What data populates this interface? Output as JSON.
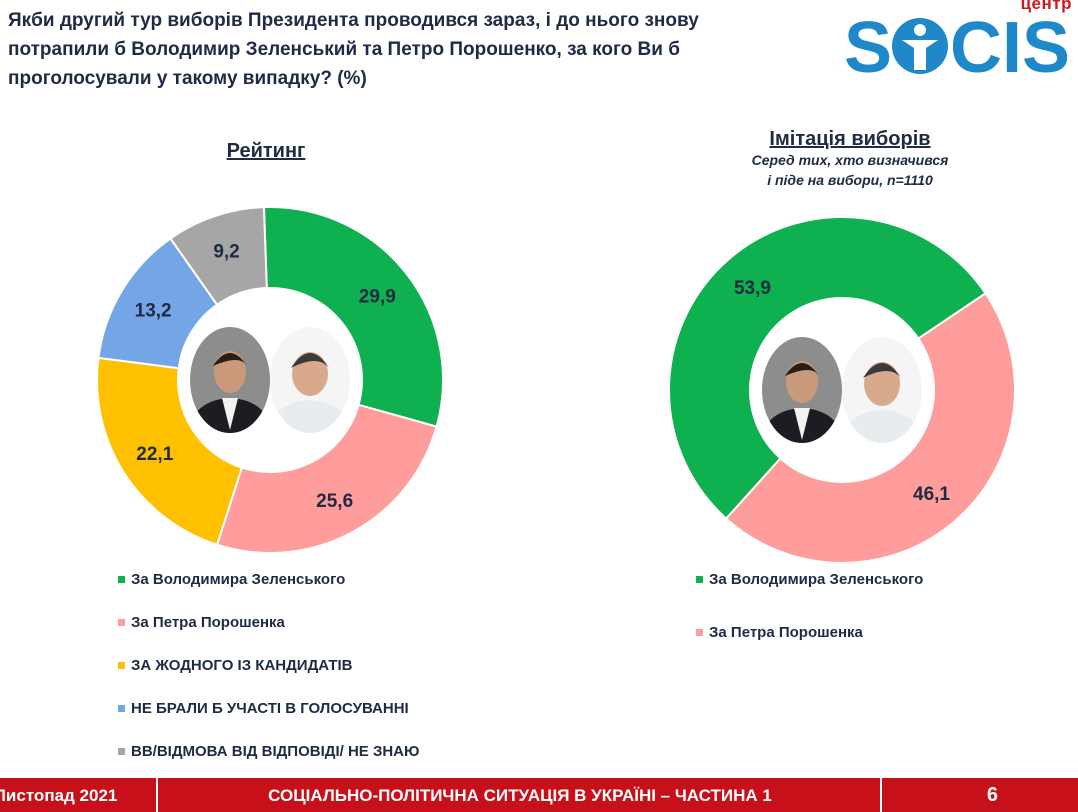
{
  "header": {
    "question": "Якби другий тур виборів Президента проводився зараз, і до нього знову потрапили б Володимир Зеленський та Петро Порошенко, за кого Ви б проголосували у такому випадку? (%)",
    "logo_top": "центр",
    "logo_word": "SOCIS"
  },
  "colors": {
    "green": "#0fb04f",
    "pink": "#ff9c9c",
    "yellow": "#ffc000",
    "blue": "#74a6e6",
    "gray": "#a6a6a6",
    "footer_red": "#c8101b"
  },
  "chart_data": [
    {
      "type": "pie",
      "title": "Рейтинг",
      "categories": [
        "За Володимира Зеленського",
        "За Петра Порошенка",
        "ЗА ЖОДНОГО ІЗ КАНДИДАТІВ",
        "НЕ БРАЛИ Б УЧАСТІ В ГОЛОСУВАННІ",
        "ВВ/ВІДМОВА ВІД ВІДПОВІДІ/ НЕ ЗНАЮ"
      ],
      "values": [
        29.9,
        25.6,
        22.1,
        13.2,
        9.2
      ],
      "labels": [
        "29,9",
        "25,6",
        "22,1",
        "13,2",
        "9,2"
      ],
      "colors": [
        "#0fb04f",
        "#ff9c9c",
        "#ffc000",
        "#74a6e6",
        "#a6a6a6"
      ],
      "start_angle_deg": -2
    },
    {
      "type": "pie",
      "title": "Імітація виборів",
      "subtitle": "Серед тих, хто визначився і піде на вибори, n=1110",
      "categories": [
        "За Володимира Зеленського",
        "За Петра Порошенка"
      ],
      "values": [
        53.9,
        46.1
      ],
      "labels": [
        "53,9",
        "46,1"
      ],
      "colors": [
        "#0fb04f",
        "#ff9c9c"
      ],
      "start_angle_deg": 222
    }
  ],
  "panels": {
    "left": {
      "title": "Рейтинг"
    },
    "right": {
      "title": "Імітація виборів",
      "subtitle_1": "Серед тих, хто визначився",
      "subtitle_2": "і піде на вибори, n=1110"
    }
  },
  "legend_left": [
    "За Володимира Зеленського",
    "За Петра Порошенка",
    "ЗА ЖОДНОГО ІЗ КАНДИДАТІВ",
    "НЕ БРАЛИ Б УЧАСТІ В ГОЛОСУВАННІ",
    "ВВ/ВІДМОВА ВІД ВІДПОВІДІ/ НЕ ЗНАЮ"
  ],
  "legend_right": [
    "За Володимира Зеленського",
    "За Петра Порошенка"
  ],
  "footer": {
    "date": "Листопад 2021",
    "title": "СОЦІАЛЬНО-ПОЛІТИЧНА СИТУАЦІЯ В УКРАЇНІ – ЧАСТИНА 1",
    "page": "6"
  }
}
